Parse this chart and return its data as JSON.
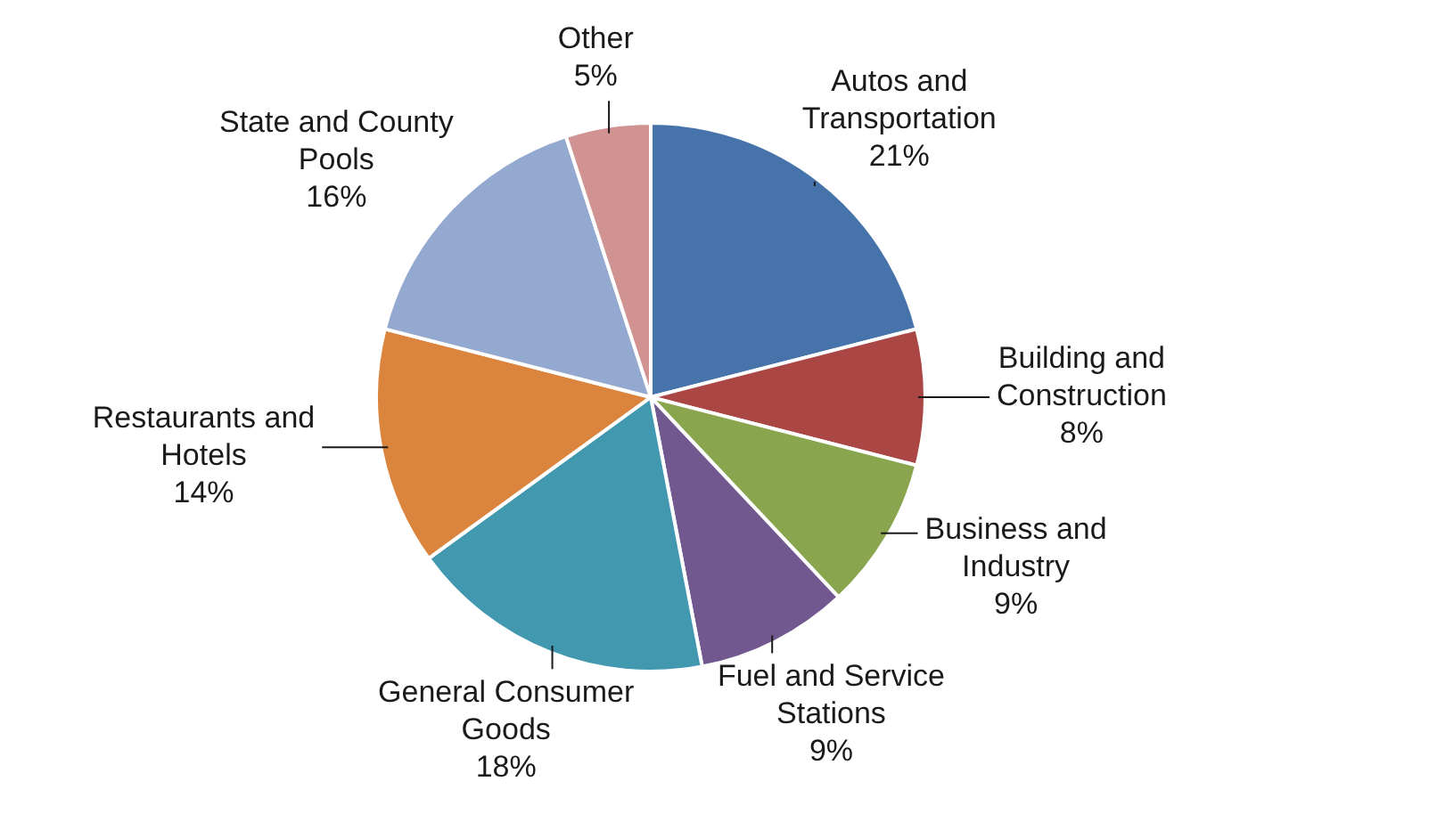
{
  "chart_data": {
    "type": "pie",
    "categories": [
      "Autos and Transportation",
      "Building and Construction",
      "Business and Industry",
      "Fuel and Service Stations",
      "General Consumer Goods",
      "Restaurants and Hotels",
      "State and County Pools",
      "Other"
    ],
    "values": [
      21,
      8,
      9,
      9,
      18,
      14,
      16,
      5
    ],
    "value_labels": [
      "21%",
      "8%",
      "9%",
      "9%",
      "18%",
      "14%",
      "16%",
      "5%"
    ],
    "colors": [
      "#4674aa",
      "#aa4643",
      "#89a54e",
      "#71588f",
      "#4198af",
      "#db843d",
      "#93a9cf",
      "#d19392"
    ],
    "legend": false
  }
}
